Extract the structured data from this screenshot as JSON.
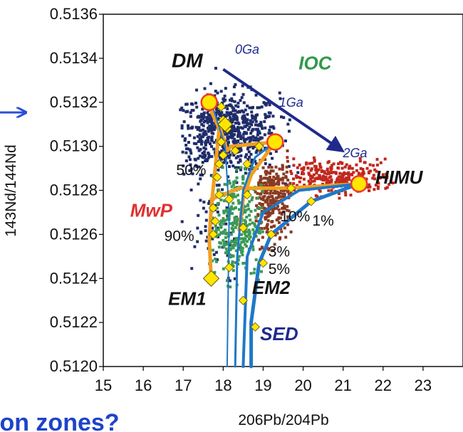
{
  "chart_data": {
    "type": "scatter",
    "title": "",
    "xlabel": "206Pb/204Pb",
    "ylabel": "143Nd/144Nd",
    "xlim": [
      15,
      24
    ],
    "ylim": [
      0.512,
      0.5136
    ],
    "x_ticks": [
      "15",
      "16",
      "17",
      "18",
      "19",
      "20",
      "21",
      "22",
      "23"
    ],
    "y_ticks": [
      "0.5120",
      "0.5122",
      "0.5124",
      "0.5126",
      "0.5128",
      "0.5130",
      "0.5132",
      "0.5134",
      "0.5136"
    ],
    "grid": false,
    "colors": {
      "dm": "#1f2d6b",
      "him": "#c0281e",
      "brown": "#8a3a22",
      "green": "#3a9a55",
      "orange": "#f0a020",
      "blue_curve": "#1f78c8",
      "arrow": "#1f2a8c",
      "marker": "#ffe600",
      "endmember": "#f03a2a"
    },
    "end_members": [
      {
        "label": "DM",
        "x": 17.6,
        "y": 0.5132,
        "lx": 17.1,
        "ly": 0.51336,
        "color": "#111111"
      },
      {
        "label": "HIMU",
        "x": 21.4,
        "y": 0.51283,
        "lx": 22.4,
        "ly": 0.51283,
        "color": "#111111"
      },
      {
        "label": "EM1",
        "x": 17.7,
        "y": 0.5124,
        "lx": 17.1,
        "ly": 0.51228,
        "color": "#111111"
      },
      {
        "label": "EM2",
        "x": 19.0,
        "y": 0.51245,
        "lx": 19.2,
        "ly": 0.51233,
        "color": "#111111"
      },
      {
        "label": "IOC",
        "x": 20.3,
        "y": 0.51335,
        "lx": 20.3,
        "ly": 0.51335,
        "color": "#2e9a4a"
      },
      {
        "label": "MwP",
        "x": 16.2,
        "y": 0.51268,
        "lx": 16.2,
        "ly": 0.51268,
        "color": "#e03030"
      },
      {
        "label": "SED",
        "x": 19.4,
        "y": 0.51212,
        "lx": 19.4,
        "ly": 0.51212,
        "color": "#1f2a8c"
      }
    ],
    "age_arrow": {
      "from": [
        18.0,
        0.51335
      ],
      "to": [
        20.9,
        0.51299
      ],
      "labels": [
        {
          "text": "0Ga",
          "x": 18.6,
          "y": 0.51342
        },
        {
          "text": "1Ga",
          "x": 19.7,
          "y": 0.51318
        },
        {
          "text": "2Ga",
          "x": 21.3,
          "y": 0.51295
        }
      ]
    },
    "percent_labels": [
      {
        "text": "50%",
        "x": 17.2,
        "y": 0.51287
      },
      {
        "text": "90%",
        "x": 16.9,
        "y": 0.51257
      },
      {
        "text": "10%",
        "x": 19.8,
        "y": 0.51266
      },
      {
        "text": "1%",
        "x": 20.5,
        "y": 0.51264
      },
      {
        "text": "3%",
        "x": 19.4,
        "y": 0.5125
      },
      {
        "text": "5%",
        "x": 19.4,
        "y": 0.51242
      }
    ],
    "mixing_lines": [
      {
        "name": "orange-dm-em1",
        "color": "#f0a020",
        "width": 5,
        "points": [
          [
            17.6,
            0.5132
          ],
          [
            17.9,
            0.51308
          ],
          [
            17.7,
            0.51272
          ],
          [
            17.65,
            0.51258
          ],
          [
            17.7,
            0.5124
          ]
        ]
      },
      {
        "name": "orange-dm-b",
        "color": "#f0a020",
        "width": 5,
        "points": [
          [
            17.9,
            0.5131
          ],
          [
            18.1,
            0.51298
          ],
          [
            18.2,
            0.513
          ],
          [
            19.3,
            0.51302
          ]
        ]
      },
      {
        "name": "orange-horizontal",
        "color": "#f0a020",
        "width": 5,
        "points": [
          [
            17.7,
            0.51276
          ],
          [
            18.4,
            0.51281
          ],
          [
            19.6,
            0.51281
          ],
          [
            21.4,
            0.51283
          ]
        ]
      },
      {
        "name": "orange-vertical-c",
        "color": "#f0a020",
        "width": 5,
        "points": [
          [
            19.3,
            0.51302
          ],
          [
            18.7,
            0.51287
          ],
          [
            18.5,
            0.51276
          ],
          [
            18.4,
            0.51262
          ]
        ]
      },
      {
        "name": "blue-curve-1",
        "color": "#1f78c8",
        "width": 5,
        "points": [
          [
            21.4,
            0.51283
          ],
          [
            20.2,
            0.51275
          ],
          [
            19.2,
            0.5126
          ],
          [
            18.9,
            0.51247
          ],
          [
            18.7,
            0.5122
          ],
          [
            18.7,
            0.512
          ]
        ]
      },
      {
        "name": "blue-curve-2",
        "color": "#1f78c8",
        "width": 4,
        "points": [
          [
            21.4,
            0.51283
          ],
          [
            19.9,
            0.5128
          ],
          [
            19.0,
            0.5127
          ],
          [
            18.6,
            0.5125
          ],
          [
            18.5,
            0.512
          ]
        ]
      },
      {
        "name": "blue-curve-3",
        "color": "#1f78c8",
        "width": 3,
        "points": [
          [
            19.3,
            0.51302
          ],
          [
            18.8,
            0.51295
          ],
          [
            18.5,
            0.5128
          ],
          [
            18.35,
            0.5125
          ],
          [
            18.3,
            0.512
          ]
        ]
      },
      {
        "name": "blue-curve-4",
        "color": "#1f78c8",
        "width": 2,
        "points": [
          [
            17.7,
            0.5132
          ],
          [
            18.05,
            0.513
          ],
          [
            18.15,
            0.5127
          ],
          [
            18.1,
            0.512
          ]
        ]
      }
    ],
    "yellow_markers": [
      [
        17.95,
        0.51318
      ],
      [
        18.0,
        0.51312
      ],
      [
        18.1,
        0.51308
      ],
      [
        17.95,
        0.51302
      ],
      [
        18.0,
        0.51296
      ],
      [
        17.9,
        0.51292
      ],
      [
        17.85,
        0.51286
      ],
      [
        18.3,
        0.51298
      ],
      [
        18.9,
        0.513
      ],
      [
        18.6,
        0.51292
      ],
      [
        17.9,
        0.51278
      ],
      [
        18.15,
        0.51276
      ],
      [
        18.6,
        0.51278
      ],
      [
        19.7,
        0.51281
      ],
      [
        20.2,
        0.51275
      ],
      [
        17.75,
        0.51272
      ],
      [
        17.8,
        0.51266
      ],
      [
        17.75,
        0.5126
      ],
      [
        18.5,
        0.51263
      ],
      [
        19.2,
        0.5126
      ],
      [
        18.15,
        0.51245
      ],
      [
        19.0,
        0.51247
      ],
      [
        18.5,
        0.5123
      ],
      [
        18.8,
        0.51218
      ]
    ],
    "big_markers": [
      {
        "x": 18.05,
        "y": 0.5131,
        "r": 10
      },
      {
        "x": 17.7,
        "y": 0.5124,
        "r": 11
      }
    ],
    "end_member_circles": [
      {
        "x": 17.65,
        "y": 0.5132
      },
      {
        "x": 19.3,
        "y": 0.51302
      },
      {
        "x": 21.4,
        "y": 0.51283
      }
    ],
    "clusters": [
      {
        "name": "dm-cluster",
        "color": "#1f2d6b",
        "count": 700,
        "cx": 18.1,
        "cy": 0.51306,
        "sx": 0.65,
        "sy": 9e-05,
        "xmin": 16.9,
        "xmax": 19.9,
        "ymin": 0.51275,
        "ymax": 0.51336
      },
      {
        "name": "dm-tail",
        "color": "#1f2d6b",
        "count": 60,
        "cx": 17.7,
        "cy": 0.51262,
        "sx": 0.4,
        "sy": 0.00012,
        "xmin": 16.6,
        "xmax": 18.4,
        "ymin": 0.51238,
        "ymax": 0.51284
      },
      {
        "name": "himu-cluster",
        "color": "#c0281e",
        "count": 260,
        "cx": 20.8,
        "cy": 0.51286,
        "sx": 0.75,
        "sy": 4e-05,
        "xmin": 19.6,
        "xmax": 22.3,
        "ymin": 0.51276,
        "ymax": 0.51296
      },
      {
        "name": "brown-cluster",
        "color": "#8a3a22",
        "count": 280,
        "cx": 19.2,
        "cy": 0.51275,
        "sx": 0.25,
        "sy": 0.0001,
        "xmin": 18.8,
        "xmax": 19.7,
        "ymin": 0.51252,
        "ymax": 0.513
      },
      {
        "name": "green-cluster",
        "color": "#3a9a55",
        "count": 300,
        "cx": 18.3,
        "cy": 0.51265,
        "sx": 0.35,
        "sy": 0.00012,
        "xmin": 17.7,
        "xmax": 19.0,
        "ymin": 0.51236,
        "ymax": 0.51294
      }
    ]
  },
  "page": {
    "left_arrow_color": "#2a4fd8",
    "bottom_heading": "ion zones?",
    "bottom_heading_color": "#1f43c8"
  }
}
